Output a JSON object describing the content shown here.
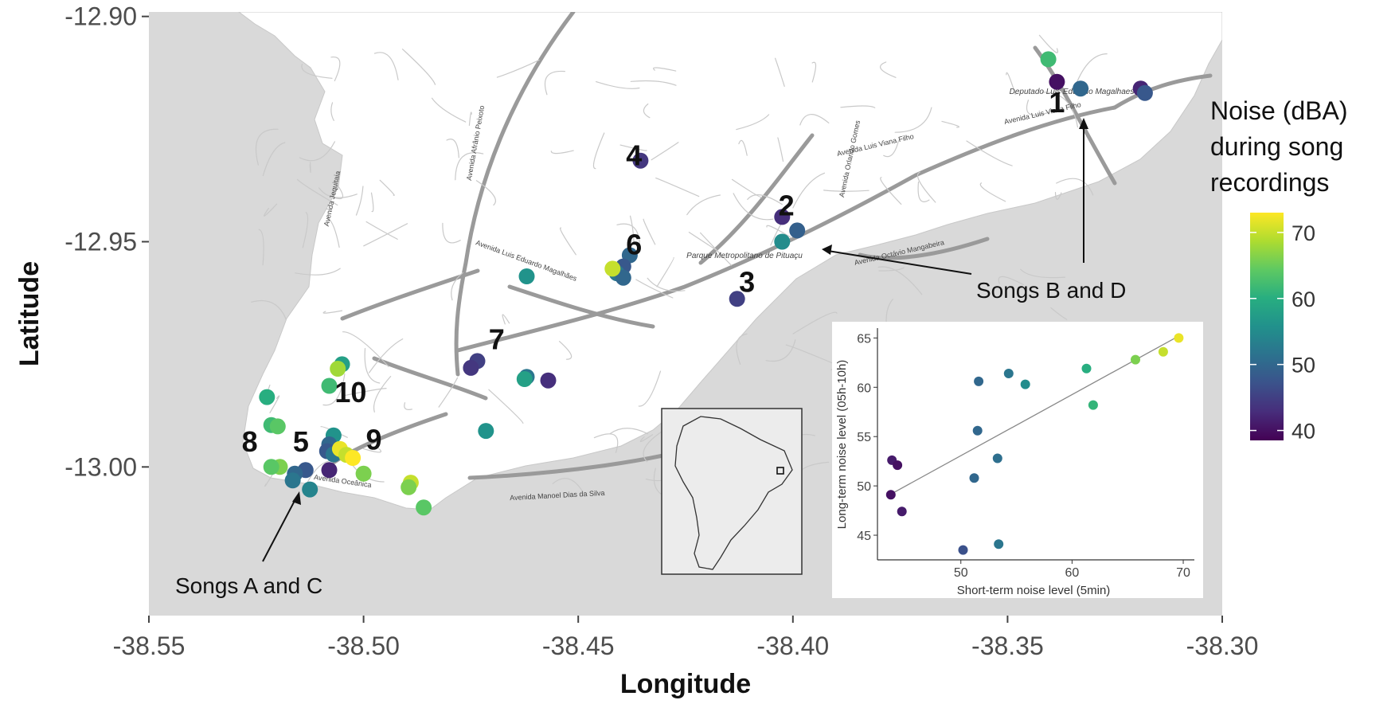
{
  "map": {
    "xlabel": "Longitude",
    "ylabel": "Latitude",
    "x_ticks": [
      "-38.55",
      "-38.50",
      "-38.45",
      "-38.40",
      "-38.35",
      "-38.30"
    ],
    "x_tick_values": [
      -38.55,
      -38.5,
      -38.45,
      -38.4,
      -38.35,
      -38.3
    ],
    "y_ticks": [
      "-12.90",
      "-12.95",
      "-13.00"
    ],
    "y_tick_values": [
      -12.9,
      -12.95,
      -13.0
    ],
    "xlim": [
      -38.55,
      -38.3
    ],
    "ylim": [
      -13.033,
      -12.899
    ],
    "background_color": "#d9d9d9",
    "land_color": "#ffffff",
    "road_color": "#9a9a9a",
    "site_labels": [
      {
        "label": "1",
        "lon": -38.3385,
        "lat": -12.9213
      },
      {
        "label": "2",
        "lon": -38.4015,
        "lat": -12.9442
      },
      {
        "label": "3",
        "lon": -38.4107,
        "lat": -12.9611
      },
      {
        "label": "4",
        "lon": -38.437,
        "lat": -12.933
      },
      {
        "label": "5",
        "lon": -38.5146,
        "lat": -12.9966
      },
      {
        "label": "6",
        "lon": -38.437,
        "lat": -12.9528
      },
      {
        "label": "7",
        "lon": -38.469,
        "lat": -12.9739
      },
      {
        "label": "8",
        "lon": -38.5265,
        "lat": -12.9966
      },
      {
        "label": "9",
        "lon": -38.4976,
        "lat": -12.9961
      },
      {
        "label": "10",
        "lon": -38.503,
        "lat": -12.9856
      }
    ],
    "road_names": [
      "Avenida Afrânio Peixoto",
      "Avenida Luis Viana Filho",
      "Avenida Luis Viana Filho",
      "Avenida Jequitaia",
      "Avenida Octávio Mangabeira",
      "Avenida Manoel Dias da Silva",
      "Avenida Oceânica",
      "Avenida Luis Eduardo Magalhães",
      "Avenida Orlando Gomes"
    ],
    "place_names": [
      "Parque Metropolitano de Pituaçu",
      "Deputado Luis Eduardo Magalhaes Int'l"
    ],
    "annotations": [
      {
        "text": "Songs B and D",
        "lon": -38.361,
        "lat": -12.9615
      },
      {
        "text": "Songs A and C",
        "lon": -38.527,
        "lat": -13.026
      }
    ],
    "inset_note": "locator map: South America",
    "points": [
      {
        "lon": -38.3405,
        "lat": -12.9095,
        "noise": 62
      },
      {
        "lon": -38.3385,
        "lat": -12.9145,
        "noise": 40
      },
      {
        "lon": -38.333,
        "lat": -12.916,
        "noise": 50
      },
      {
        "lon": -38.319,
        "lat": -12.916,
        "noise": 42
      },
      {
        "lon": -38.318,
        "lat": -12.917,
        "noise": 48
      },
      {
        "lon": -38.4355,
        "lat": -12.932,
        "noise": 44
      },
      {
        "lon": -38.4025,
        "lat": -12.9445,
        "noise": 43
      },
      {
        "lon": -38.399,
        "lat": -12.9475,
        "noise": 49
      },
      {
        "lon": -38.4025,
        "lat": -12.95,
        "noise": 55
      },
      {
        "lon": -38.413,
        "lat": -12.9627,
        "noise": 45
      },
      {
        "lon": -38.438,
        "lat": -12.953,
        "noise": 50
      },
      {
        "lon": -38.4395,
        "lat": -12.9555,
        "noise": 48
      },
      {
        "lon": -38.441,
        "lat": -12.957,
        "noise": 52
      },
      {
        "lon": -38.4395,
        "lat": -12.958,
        "noise": 50
      },
      {
        "lon": -38.442,
        "lat": -12.956,
        "noise": 70
      },
      {
        "lon": -38.462,
        "lat": -12.9577,
        "noise": 56
      },
      {
        "lon": -38.4735,
        "lat": -12.9765,
        "noise": 45
      },
      {
        "lon": -38.475,
        "lat": -12.978,
        "noise": 44
      },
      {
        "lon": -38.462,
        "lat": -12.98,
        "noise": 52
      },
      {
        "lon": -38.4625,
        "lat": -12.9805,
        "noise": 58
      },
      {
        "lon": -38.457,
        "lat": -12.9808,
        "noise": 43
      },
      {
        "lon": -38.4715,
        "lat": -12.992,
        "noise": 56
      },
      {
        "lon": -38.505,
        "lat": -12.9772,
        "noise": 58
      },
      {
        "lon": -38.506,
        "lat": -12.9782,
        "noise": 68
      },
      {
        "lon": -38.508,
        "lat": -12.982,
        "noise": 62
      },
      {
        "lon": -38.5225,
        "lat": -12.9845,
        "noise": 60
      },
      {
        "lon": -38.5215,
        "lat": -12.9907,
        "noise": 62
      },
      {
        "lon": -38.52,
        "lat": -12.991,
        "noise": 64
      },
      {
        "lon": -38.507,
        "lat": -12.993,
        "noise": 56
      },
      {
        "lon": -38.508,
        "lat": -12.995,
        "noise": 50
      },
      {
        "lon": -38.5085,
        "lat": -12.9965,
        "noise": 48
      },
      {
        "lon": -38.507,
        "lat": -12.9972,
        "noise": 52
      },
      {
        "lon": -38.5055,
        "lat": -12.996,
        "noise": 72
      },
      {
        "lon": -38.504,
        "lat": -12.9973,
        "noise": 70
      },
      {
        "lon": -38.5025,
        "lat": -12.998,
        "noise": 73
      },
      {
        "lon": -38.5,
        "lat": -13.0015,
        "noise": 66
      },
      {
        "lon": -38.508,
        "lat": -13.0007,
        "noise": 42
      },
      {
        "lon": -38.5135,
        "lat": -13.0007,
        "noise": 48
      },
      {
        "lon": -38.516,
        "lat": -13.0015,
        "noise": 50
      },
      {
        "lon": -38.5195,
        "lat": -13.0,
        "noise": 66
      },
      {
        "lon": -38.5215,
        "lat": -13.0,
        "noise": 64
      },
      {
        "lon": -38.5165,
        "lat": -13.003,
        "noise": 52
      },
      {
        "lon": -38.5125,
        "lat": -13.005,
        "noise": 54
      },
      {
        "lon": -38.489,
        "lat": -13.0035,
        "noise": 70
      },
      {
        "lon": -38.4895,
        "lat": -13.0045,
        "noise": 66
      },
      {
        "lon": -38.486,
        "lat": -13.009,
        "noise": 64
      }
    ]
  },
  "legend": {
    "title_lines": [
      "Noise (dBA)",
      "during song",
      "recordings"
    ],
    "ticks": [
      70,
      60,
      50,
      40
    ],
    "range": [
      38.5,
      73
    ],
    "colormap": [
      "#440154",
      "#472d7b",
      "#3b528b",
      "#2c728e",
      "#21918c",
      "#28ae80",
      "#5ec962",
      "#addc30",
      "#fde725"
    ]
  },
  "chart_data": {
    "type": "scatter",
    "xlabel": "Short-term noise level (5min)",
    "ylabel": "Long-term noise level (05h-10h)",
    "xlim": [
      42.5,
      71
    ],
    "ylim": [
      42.5,
      66
    ],
    "x_ticks": [
      50,
      60,
      70
    ],
    "y_ticks": [
      45,
      50,
      55,
      60,
      65
    ],
    "trend_line": {
      "x": [
        43.6,
        69.6
      ],
      "y": [
        49.1,
        65.2
      ]
    },
    "points": [
      {
        "x": 43.8,
        "y": 52.6,
        "noise": 41
      },
      {
        "x": 44.3,
        "y": 52.1,
        "noise": 40
      },
      {
        "x": 43.7,
        "y": 49.1,
        "noise": 40
      },
      {
        "x": 44.7,
        "y": 47.4,
        "noise": 41
      },
      {
        "x": 50.2,
        "y": 43.5,
        "noise": 47
      },
      {
        "x": 51.2,
        "y": 50.8,
        "noise": 50
      },
      {
        "x": 51.6,
        "y": 60.6,
        "noise": 50
      },
      {
        "x": 51.5,
        "y": 55.6,
        "noise": 50
      },
      {
        "x": 53.3,
        "y": 52.8,
        "noise": 51
      },
      {
        "x": 53.4,
        "y": 44.1,
        "noise": 52
      },
      {
        "x": 54.3,
        "y": 61.4,
        "noise": 52
      },
      {
        "x": 55.8,
        "y": 60.3,
        "noise": 55
      },
      {
        "x": 61.3,
        "y": 61.9,
        "noise": 60
      },
      {
        "x": 61.9,
        "y": 58.2,
        "noise": 61
      },
      {
        "x": 65.7,
        "y": 62.8,
        "noise": 66
      },
      {
        "x": 68.2,
        "y": 63.6,
        "noise": 70
      },
      {
        "x": 69.6,
        "y": 65.0,
        "noise": 72
      }
    ]
  }
}
